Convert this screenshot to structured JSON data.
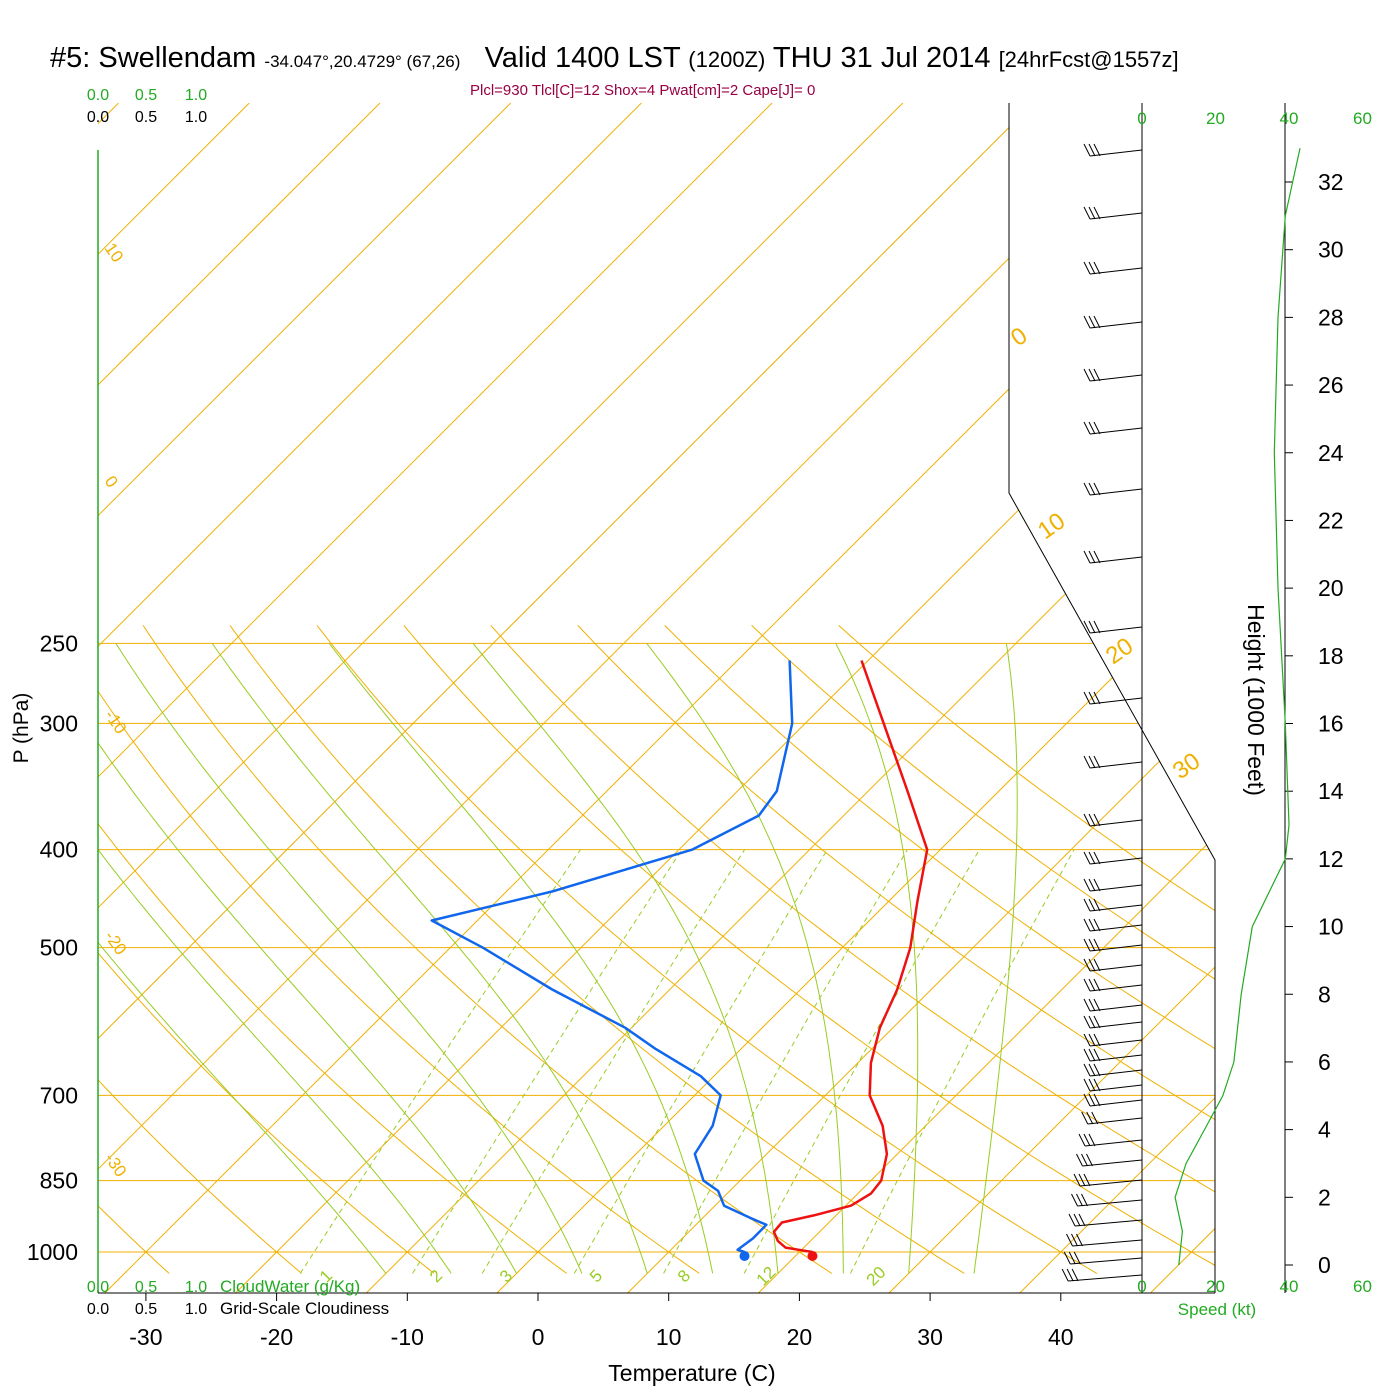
{
  "title": {
    "station": "#5: Swellendam",
    "coords": "-34.047°,20.4729° (67,26)",
    "valid": "Valid 1400 LST",
    "utc": "(1200Z)",
    "date": "THU 31 Jul 2014",
    "forecast": "[24hrFcst@1557z]"
  },
  "indices": "Plcl=930 Tlcl[C]=12 Shox=4 Pwat[cm]=2 Cape[J]= 0",
  "colors": {
    "temperature": "#ee1111",
    "dewpoint": "#1166ee",
    "isotherm": "#f0b000",
    "mixing_ratio": "#99cc22",
    "speed": "#22aa22",
    "indices": "#990044"
  },
  "chart_data": {
    "type": "skew-t",
    "xlabel": "Temperature (C)",
    "ylabel": "P (hPa)",
    "y2label": "Height (1000 Feet)",
    "xlim": [
      -34,
      46
    ],
    "pressure_ticks": [
      250,
      300,
      400,
      500,
      700,
      850,
      1000
    ],
    "temperature_ticks": [
      -30,
      -20,
      -10,
      0,
      10,
      20,
      30,
      40
    ],
    "height_ticks": [
      0,
      2,
      4,
      6,
      8,
      10,
      12,
      14,
      16,
      18,
      20,
      22,
      24,
      26,
      28,
      30,
      32
    ],
    "isotherm_labels": [
      "10",
      "0",
      "-10",
      "-20",
      "-30",
      "0",
      "10",
      "20",
      "30"
    ],
    "mixing_ratio_labels": [
      "1",
      "2",
      "3",
      "5",
      "8",
      "12",
      "20"
    ],
    "cloud_scale_top": [
      "0.0",
      "0.5",
      "1.0"
    ],
    "cloud_scale_bottom": [
      "0.0",
      "0.5",
      "1.0"
    ],
    "cloudwater_label": "CloudWater (g/Kg)",
    "cloudiness_label": "Grid-Scale Cloudiness",
    "speed_ticks": [
      "0",
      "20",
      "40",
      "60"
    ],
    "speed_label": "Speed (kt)",
    "temperature_profile": [
      {
        "p": 1000,
        "t": 21.0
      },
      {
        "p": 996,
        "t": 20.0
      },
      {
        "p": 990,
        "t": 18.6
      },
      {
        "p": 975,
        "t": 17.5
      },
      {
        "p": 955,
        "t": 16.5
      },
      {
        "p": 935,
        "t": 16.4
      },
      {
        "p": 920,
        "t": 18.3
      },
      {
        "p": 900,
        "t": 20.4
      },
      {
        "p": 875,
        "t": 21.0
      },
      {
        "p": 850,
        "t": 20.8
      },
      {
        "p": 800,
        "t": 19.2
      },
      {
        "p": 750,
        "t": 16.7
      },
      {
        "p": 700,
        "t": 13.4
      },
      {
        "p": 650,
        "t": 11.0
      },
      {
        "p": 600,
        "t": 9.0
      },
      {
        "p": 550,
        "t": 7.4
      },
      {
        "p": 500,
        "t": 5.2
      },
      {
        "p": 450,
        "t": 2.2
      },
      {
        "p": 400,
        "t": -1.0
      },
      {
        "p": 350,
        "t": -7.0
      },
      {
        "p": 300,
        "t": -14.0
      },
      {
        "p": 260,
        "t": -20.5
      }
    ],
    "dewpoint_profile": [
      {
        "p": 1000,
        "t": 15.8
      },
      {
        "p": 995,
        "t": 15.1
      },
      {
        "p": 970,
        "t": 15.4
      },
      {
        "p": 940,
        "t": 15.4
      },
      {
        "p": 925,
        "t": 13.6
      },
      {
        "p": 900,
        "t": 10.7
      },
      {
        "p": 870,
        "t": 9.1
      },
      {
        "p": 850,
        "t": 7.2
      },
      {
        "p": 800,
        "t": 4.5
      },
      {
        "p": 750,
        "t": 3.7
      },
      {
        "p": 700,
        "t": 2.0
      },
      {
        "p": 670,
        "t": -1.0
      },
      {
        "p": 630,
        "t": -6.5
      },
      {
        "p": 600,
        "t": -10.5
      },
      {
        "p": 550,
        "t": -19.0
      },
      {
        "p": 500,
        "t": -27.5
      },
      {
        "p": 470,
        "t": -33.5
      },
      {
        "p": 440,
        "t": -26.5
      },
      {
        "p": 400,
        "t": -19.0
      },
      {
        "p": 370,
        "t": -16.5
      },
      {
        "p": 350,
        "t": -17.0
      },
      {
        "p": 300,
        "t": -21.0
      },
      {
        "p": 260,
        "t": -26.0
      }
    ],
    "wind_speed_profile": [
      {
        "h": 0.0,
        "s": 10
      },
      {
        "h": 1.0,
        "s": 11
      },
      {
        "h": 2.0,
        "s": 9
      },
      {
        "h": 3.0,
        "s": 12
      },
      {
        "h": 4.0,
        "s": 17
      },
      {
        "h": 5.0,
        "s": 22
      },
      {
        "h": 6.0,
        "s": 25
      },
      {
        "h": 8.0,
        "s": 27
      },
      {
        "h": 10.0,
        "s": 30
      },
      {
        "h": 12.0,
        "s": 39
      },
      {
        "h": 13.0,
        "s": 40
      },
      {
        "h": 16.0,
        "s": 39
      },
      {
        "h": 20.0,
        "s": 37
      },
      {
        "h": 24.0,
        "s": 36
      },
      {
        "h": 28.0,
        "s": 37
      },
      {
        "h": 31.0,
        "s": 39
      },
      {
        "h": 33.0,
        "s": 43
      }
    ]
  }
}
